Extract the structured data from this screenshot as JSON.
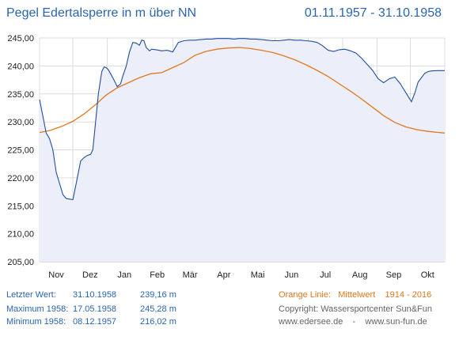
{
  "header": {
    "title": "Pegel Edertalsperre in m über NN",
    "period": "01.11.1957 - 31.10.1958"
  },
  "info": {
    "last": {
      "label": "Letzter Wert:",
      "date": "31.10.1958",
      "value": "239,16 m"
    },
    "max": {
      "label": "Maximum 1958:",
      "date": "17.05.1958",
      "value": "245,28 m"
    },
    "min": {
      "label": "Minimum  1958:",
      "date": "08.12.1957",
      "value": "216,02 m"
    }
  },
  "legend": {
    "orange_label": "Orange Linie:",
    "orange_desc": "Mittelwert",
    "orange_years": "1914 - 2016"
  },
  "footer": {
    "copyright": "Copyright: Wassersportcenter Sun&Fun",
    "sites": "www.edersee.de    -    www.sun-fun.de"
  },
  "colors": {
    "level_line": "#1f4e9c",
    "level_fill": "#eceff9",
    "mean_line": "#e0781e",
    "grid": "#dcdcdc",
    "title": "#2a64b0"
  },
  "chart_data": {
    "type": "line",
    "ylim": [
      205,
      245
    ],
    "yticks": [
      "205,00",
      "210,00",
      "215,00",
      "220,00",
      "225,00",
      "230,00",
      "235,00",
      "240,00",
      "245,00"
    ],
    "xticks": [
      "Nov",
      "Dez",
      "Jan",
      "Feb",
      "Mär",
      "Apr",
      "Mai",
      "Jun",
      "Jul",
      "Aug",
      "Sep",
      "Okt"
    ],
    "xrange_days": [
      0,
      365
    ],
    "grid": true,
    "series": [
      {
        "role": "level",
        "x": [
          0,
          3,
          6,
          9,
          12,
          15,
          18,
          21,
          24,
          27,
          30,
          33,
          36,
          37,
          40,
          43,
          46,
          48,
          50,
          53,
          56,
          58,
          60,
          62,
          64,
          67,
          70,
          73,
          75,
          78,
          81,
          84,
          87,
          90,
          92,
          94,
          96,
          98,
          99,
          101,
          105,
          110,
          115,
          120,
          125,
          130,
          135,
          140,
          145,
          150,
          155,
          160,
          165,
          170,
          175,
          180,
          185,
          190,
          195,
          200,
          205,
          210,
          215,
          220,
          225,
          230,
          235,
          240,
          245,
          250,
          255,
          260,
          265,
          270,
          275,
          280,
          285,
          290,
          295,
          300,
          305,
          310,
          315,
          320,
          325,
          330,
          335,
          338,
          341,
          344,
          347,
          350,
          353,
          356,
          359,
          362,
          365
        ],
        "y": [
          234,
          231,
          228,
          227,
          225,
          221,
          219,
          217,
          216.3,
          216.2,
          216.1,
          219,
          222,
          223,
          223.6,
          224,
          224.2,
          225,
          229,
          235,
          239,
          239.8,
          239.7,
          239.3,
          238.6,
          237.5,
          236.3,
          236.8,
          238.2,
          239.9,
          242.5,
          244.2,
          244.1,
          243.7,
          244.6,
          244.5,
          243.3,
          242.9,
          242.7,
          243,
          242.9,
          242.7,
          242.8,
          242.5,
          244.2,
          244.5,
          244.6,
          244.6,
          244.7,
          244.8,
          244.8,
          244.9,
          244.9,
          244.9,
          244.8,
          244.9,
          244.9,
          244.8,
          244.8,
          244.7,
          244.6,
          244.5,
          244.5,
          244.6,
          244.7,
          244.6,
          244.6,
          244.5,
          244.4,
          244.2,
          243.6,
          242.8,
          242.6,
          242.9,
          243,
          242.7,
          242.3,
          241.4,
          240.3,
          239.2,
          237.7,
          237,
          237.7,
          238,
          236.8,
          235.2,
          233.6,
          235.1,
          237.1,
          237.9,
          238.7,
          239,
          239.1,
          239.15,
          239.16,
          239.16,
          239.16
        ]
      },
      {
        "role": "mean",
        "x": [
          0,
          10,
          20,
          30,
          40,
          50,
          60,
          70,
          80,
          90,
          100,
          110,
          120,
          130,
          140,
          150,
          160,
          170,
          180,
          190,
          200,
          210,
          220,
          230,
          240,
          250,
          260,
          270,
          280,
          290,
          300,
          310,
          320,
          330,
          340,
          350,
          360,
          365
        ],
        "y": [
          228.1,
          228.5,
          229.2,
          230.1,
          231.4,
          233,
          234.8,
          236.1,
          237,
          237.9,
          238.6,
          238.8,
          239.7,
          240.6,
          241.9,
          242.6,
          243,
          243.2,
          243.3,
          243.1,
          242.8,
          242.4,
          241.8,
          241.1,
          240.2,
          239.2,
          238.1,
          236.8,
          235.5,
          234.1,
          232.6,
          231.1,
          229.9,
          229.1,
          228.6,
          228.3,
          228.1,
          228
        ]
      }
    ]
  }
}
